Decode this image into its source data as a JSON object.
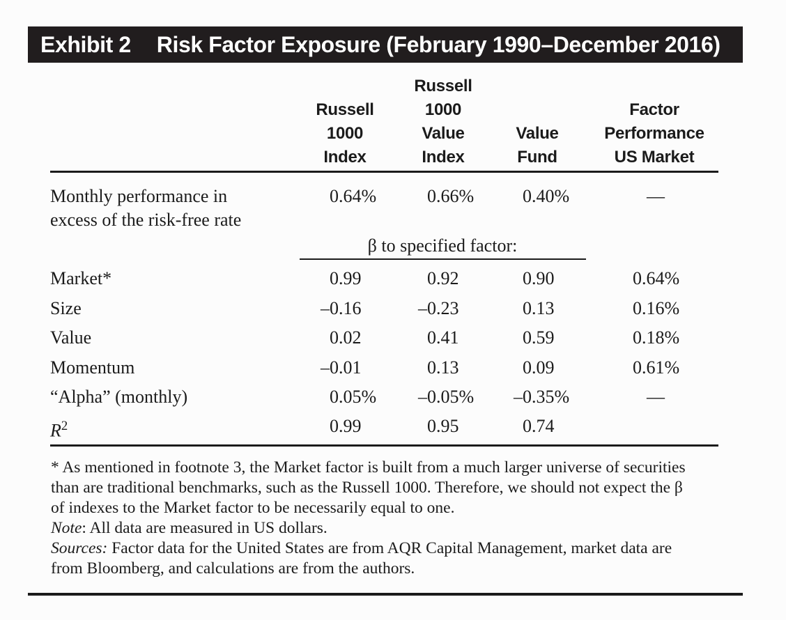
{
  "page": {
    "background": "#fcfcfc",
    "bar_color": "#211d1e",
    "text_color": "#1b1b1b"
  },
  "exhibit_header": {
    "label": "Exhibit 2",
    "title": "Risk Factor Exposure (February 1990–December 2016)"
  },
  "table": {
    "column_headers": [
      {
        "name": "Russell 1000 Index",
        "lines": [
          "Russell",
          "1000",
          "Index"
        ]
      },
      {
        "name": "Russell 1000 Value Index",
        "lines": [
          "Russell",
          "1000",
          "Value",
          "Index"
        ]
      },
      {
        "name": "Value Fund",
        "lines": [
          "Value",
          "Fund"
        ]
      },
      {
        "name": "Factor Performance US Market",
        "lines": [
          "Factor",
          "Performance",
          "US Market"
        ]
      }
    ],
    "performance_row": {
      "label_lines": [
        "Monthly performance in",
        "excess of the risk-free rate"
      ],
      "values": [
        "0.64%",
        "0.66%",
        "0.40%",
        "—"
      ]
    },
    "beta_section_header": "β to specified factor:",
    "factor_rows": [
      {
        "label": "Market*",
        "values": [
          "0.99",
          "0.92",
          "0.90",
          "0.64%"
        ]
      },
      {
        "label": "Size",
        "values": [
          "–0.16",
          "–0.23",
          "0.13",
          "0.16%"
        ]
      },
      {
        "label": "Value",
        "values": [
          "0.02",
          "0.41",
          "0.59",
          "0.18%"
        ]
      },
      {
        "label": "Momentum",
        "values": [
          "–0.01",
          "0.13",
          "0.09",
          "0.61%"
        ]
      },
      {
        "label": "“Alpha” (monthly)",
        "values": [
          "0.05%",
          "–0.05%",
          "–0.35%",
          "—"
        ]
      },
      {
        "label_math": {
          "base": "R",
          "sup": "2"
        },
        "values": [
          "0.99",
          "0.95",
          "0.74",
          ""
        ]
      }
    ]
  },
  "footnotes": {
    "asterisk_note_lines": [
      "* As mentioned in footnote 3, the Market factor is built from a much larger universe of securities",
      "than are traditional benchmarks, such as the Russell 1000. Therefore, we should not expect the β",
      "of indexes to the Market factor to be necessarily equal to one."
    ],
    "note_label": "Note",
    "note_text": ": All data are measured in US dollars.",
    "sources_label": "Sources:",
    "sources_line1_rest": " Factor data for the United States are from AQR Capital Management, market data are",
    "sources_line2": "from Bloomberg, and calculations are from the authors."
  }
}
